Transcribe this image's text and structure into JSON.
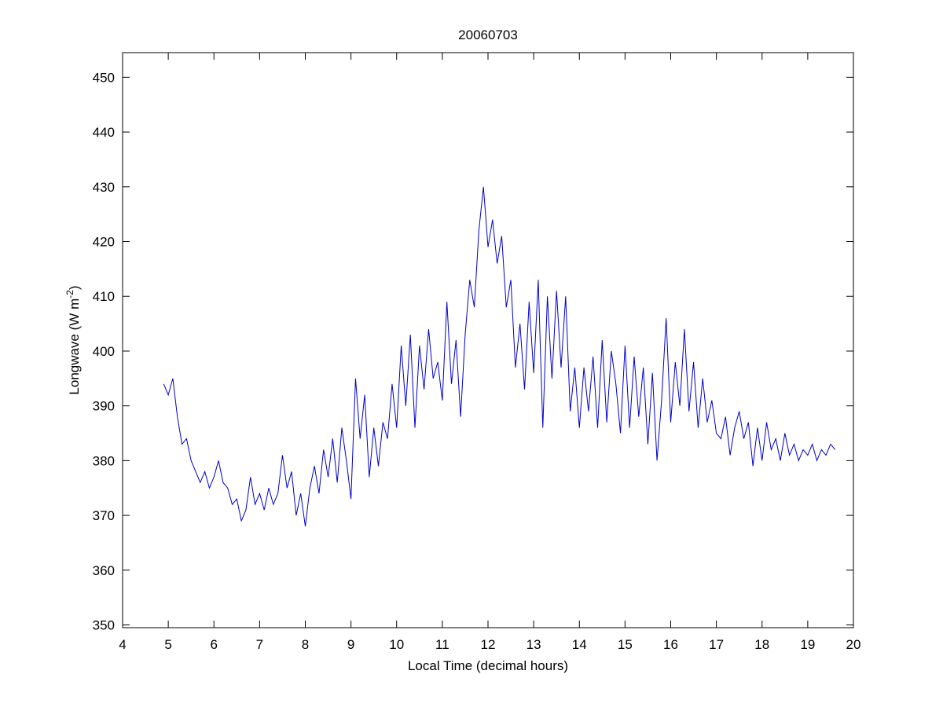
{
  "chart_data": {
    "type": "line",
    "title": "20060703",
    "xlabel": "Local Time (decimal hours)",
    "ylabel": "Longwave (W m",
    "ylabel_sup": "-2",
    "ylabel_end": ")",
    "xlim": [
      4,
      20
    ],
    "xticks": [
      4,
      5,
      6,
      7,
      8,
      9,
      10,
      11,
      12,
      13,
      14,
      15,
      16,
      17,
      18,
      19,
      20
    ],
    "ylim": [
      349.5,
      454.5
    ],
    "yticks": [
      350,
      360,
      370,
      380,
      390,
      400,
      410,
      420,
      430,
      440,
      450
    ],
    "series": [
      {
        "name": "Longwave",
        "color": "#0000cc",
        "x": [
          4.9,
          5.0,
          5.1,
          5.2,
          5.3,
          5.4,
          5.5,
          5.6,
          5.7,
          5.8,
          5.9,
          6.0,
          6.1,
          6.2,
          6.3,
          6.4,
          6.5,
          6.6,
          6.7,
          6.8,
          6.9,
          7.0,
          7.1,
          7.2,
          7.3,
          7.4,
          7.5,
          7.6,
          7.7,
          7.8,
          7.9,
          8.0,
          8.1,
          8.2,
          8.3,
          8.4,
          8.5,
          8.6,
          8.7,
          8.8,
          8.9,
          9.0,
          9.1,
          9.2,
          9.3,
          9.4,
          9.5,
          9.6,
          9.7,
          9.8,
          9.9,
          10.0,
          10.1,
          10.2,
          10.3,
          10.4,
          10.5,
          10.6,
          10.7,
          10.8,
          10.9,
          11.0,
          11.1,
          11.2,
          11.3,
          11.4,
          11.5,
          11.6,
          11.7,
          11.8,
          11.9,
          12.0,
          12.1,
          12.2,
          12.3,
          12.4,
          12.5,
          12.6,
          12.7,
          12.8,
          12.9,
          13.0,
          13.1,
          13.2,
          13.3,
          13.4,
          13.5,
          13.6,
          13.7,
          13.8,
          13.9,
          14.0,
          14.1,
          14.2,
          14.3,
          14.4,
          14.5,
          14.6,
          14.7,
          14.8,
          14.9,
          15.0,
          15.1,
          15.2,
          15.3,
          15.4,
          15.5,
          15.6,
          15.7,
          15.8,
          15.9,
          16.0,
          16.1,
          16.2,
          16.3,
          16.4,
          16.5,
          16.6,
          16.7,
          16.8,
          16.9,
          17.0,
          17.1,
          17.2,
          17.3,
          17.4,
          17.5,
          17.6,
          17.7,
          17.8,
          17.9,
          18.0,
          18.1,
          18.2,
          18.3,
          18.4,
          18.5,
          18.6,
          18.7,
          18.8,
          18.9,
          19.0,
          19.1,
          19.2,
          19.3,
          19.4,
          19.5,
          19.6
        ],
        "values": [
          394,
          392,
          395,
          388,
          383,
          384,
          380,
          378,
          376,
          378,
          375,
          377,
          380,
          376,
          375,
          372,
          373,
          369,
          371,
          377,
          372,
          374,
          371,
          375,
          372,
          374,
          381,
          375,
          378,
          370,
          374,
          368,
          375,
          379,
          374,
          382,
          377,
          384,
          376,
          386,
          380,
          373,
          395,
          384,
          392,
          377,
          386,
          379,
          387,
          384,
          394,
          386,
          401,
          390,
          403,
          386,
          401,
          393,
          404,
          395,
          398,
          391,
          409,
          394,
          402,
          388,
          403,
          413,
          408,
          422,
          430,
          419,
          424,
          416,
          421,
          408,
          413,
          397,
          405,
          393,
          409,
          396,
          413,
          386,
          410,
          395,
          411,
          397,
          410,
          389,
          397,
          386,
          397,
          389,
          399,
          386,
          402,
          387,
          400,
          394,
          385,
          401,
          386,
          399,
          388,
          397,
          383,
          396,
          380,
          391,
          406,
          387,
          398,
          390,
          404,
          389,
          398,
          386,
          395,
          387,
          391,
          385,
          384,
          388,
          381,
          386,
          389,
          384,
          387,
          379,
          386,
          380,
          387,
          382,
          384,
          380,
          385,
          381,
          383,
          380,
          382,
          381,
          383,
          380,
          382,
          381,
          383,
          382
        ]
      }
    ]
  }
}
